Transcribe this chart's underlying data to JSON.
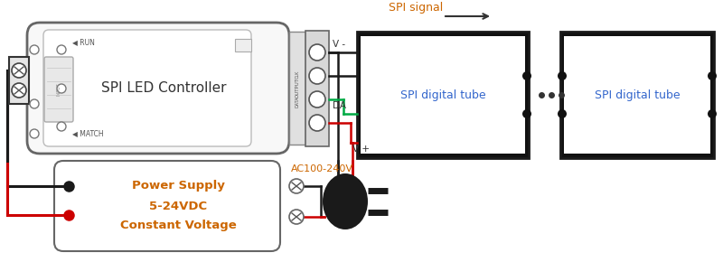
{
  "bg_color": "#ffffff",
  "spi_signal_label": "SPI signal",
  "spi_signal_color": "#cc6600",
  "controller_label": "SPI LED Controller",
  "tube_label": "SPI digital tube",
  "psu_lines": [
    "Power Supply",
    "5-24VDC",
    "Constant Voltage"
  ],
  "psu_label_color": "#cc6600",
  "ac_label": "AC100-240V",
  "ac_label_color": "#cc6600",
  "v_minus": "V -",
  "da_label": "DA",
  "v_plus": "V +",
  "wire_black": "#1a1a1a",
  "wire_red": "#cc0000",
  "wire_green": "#00aa44",
  "box_edge": "#555555",
  "text_dark": "#333333",
  "tube_text_color": "#3366cc"
}
